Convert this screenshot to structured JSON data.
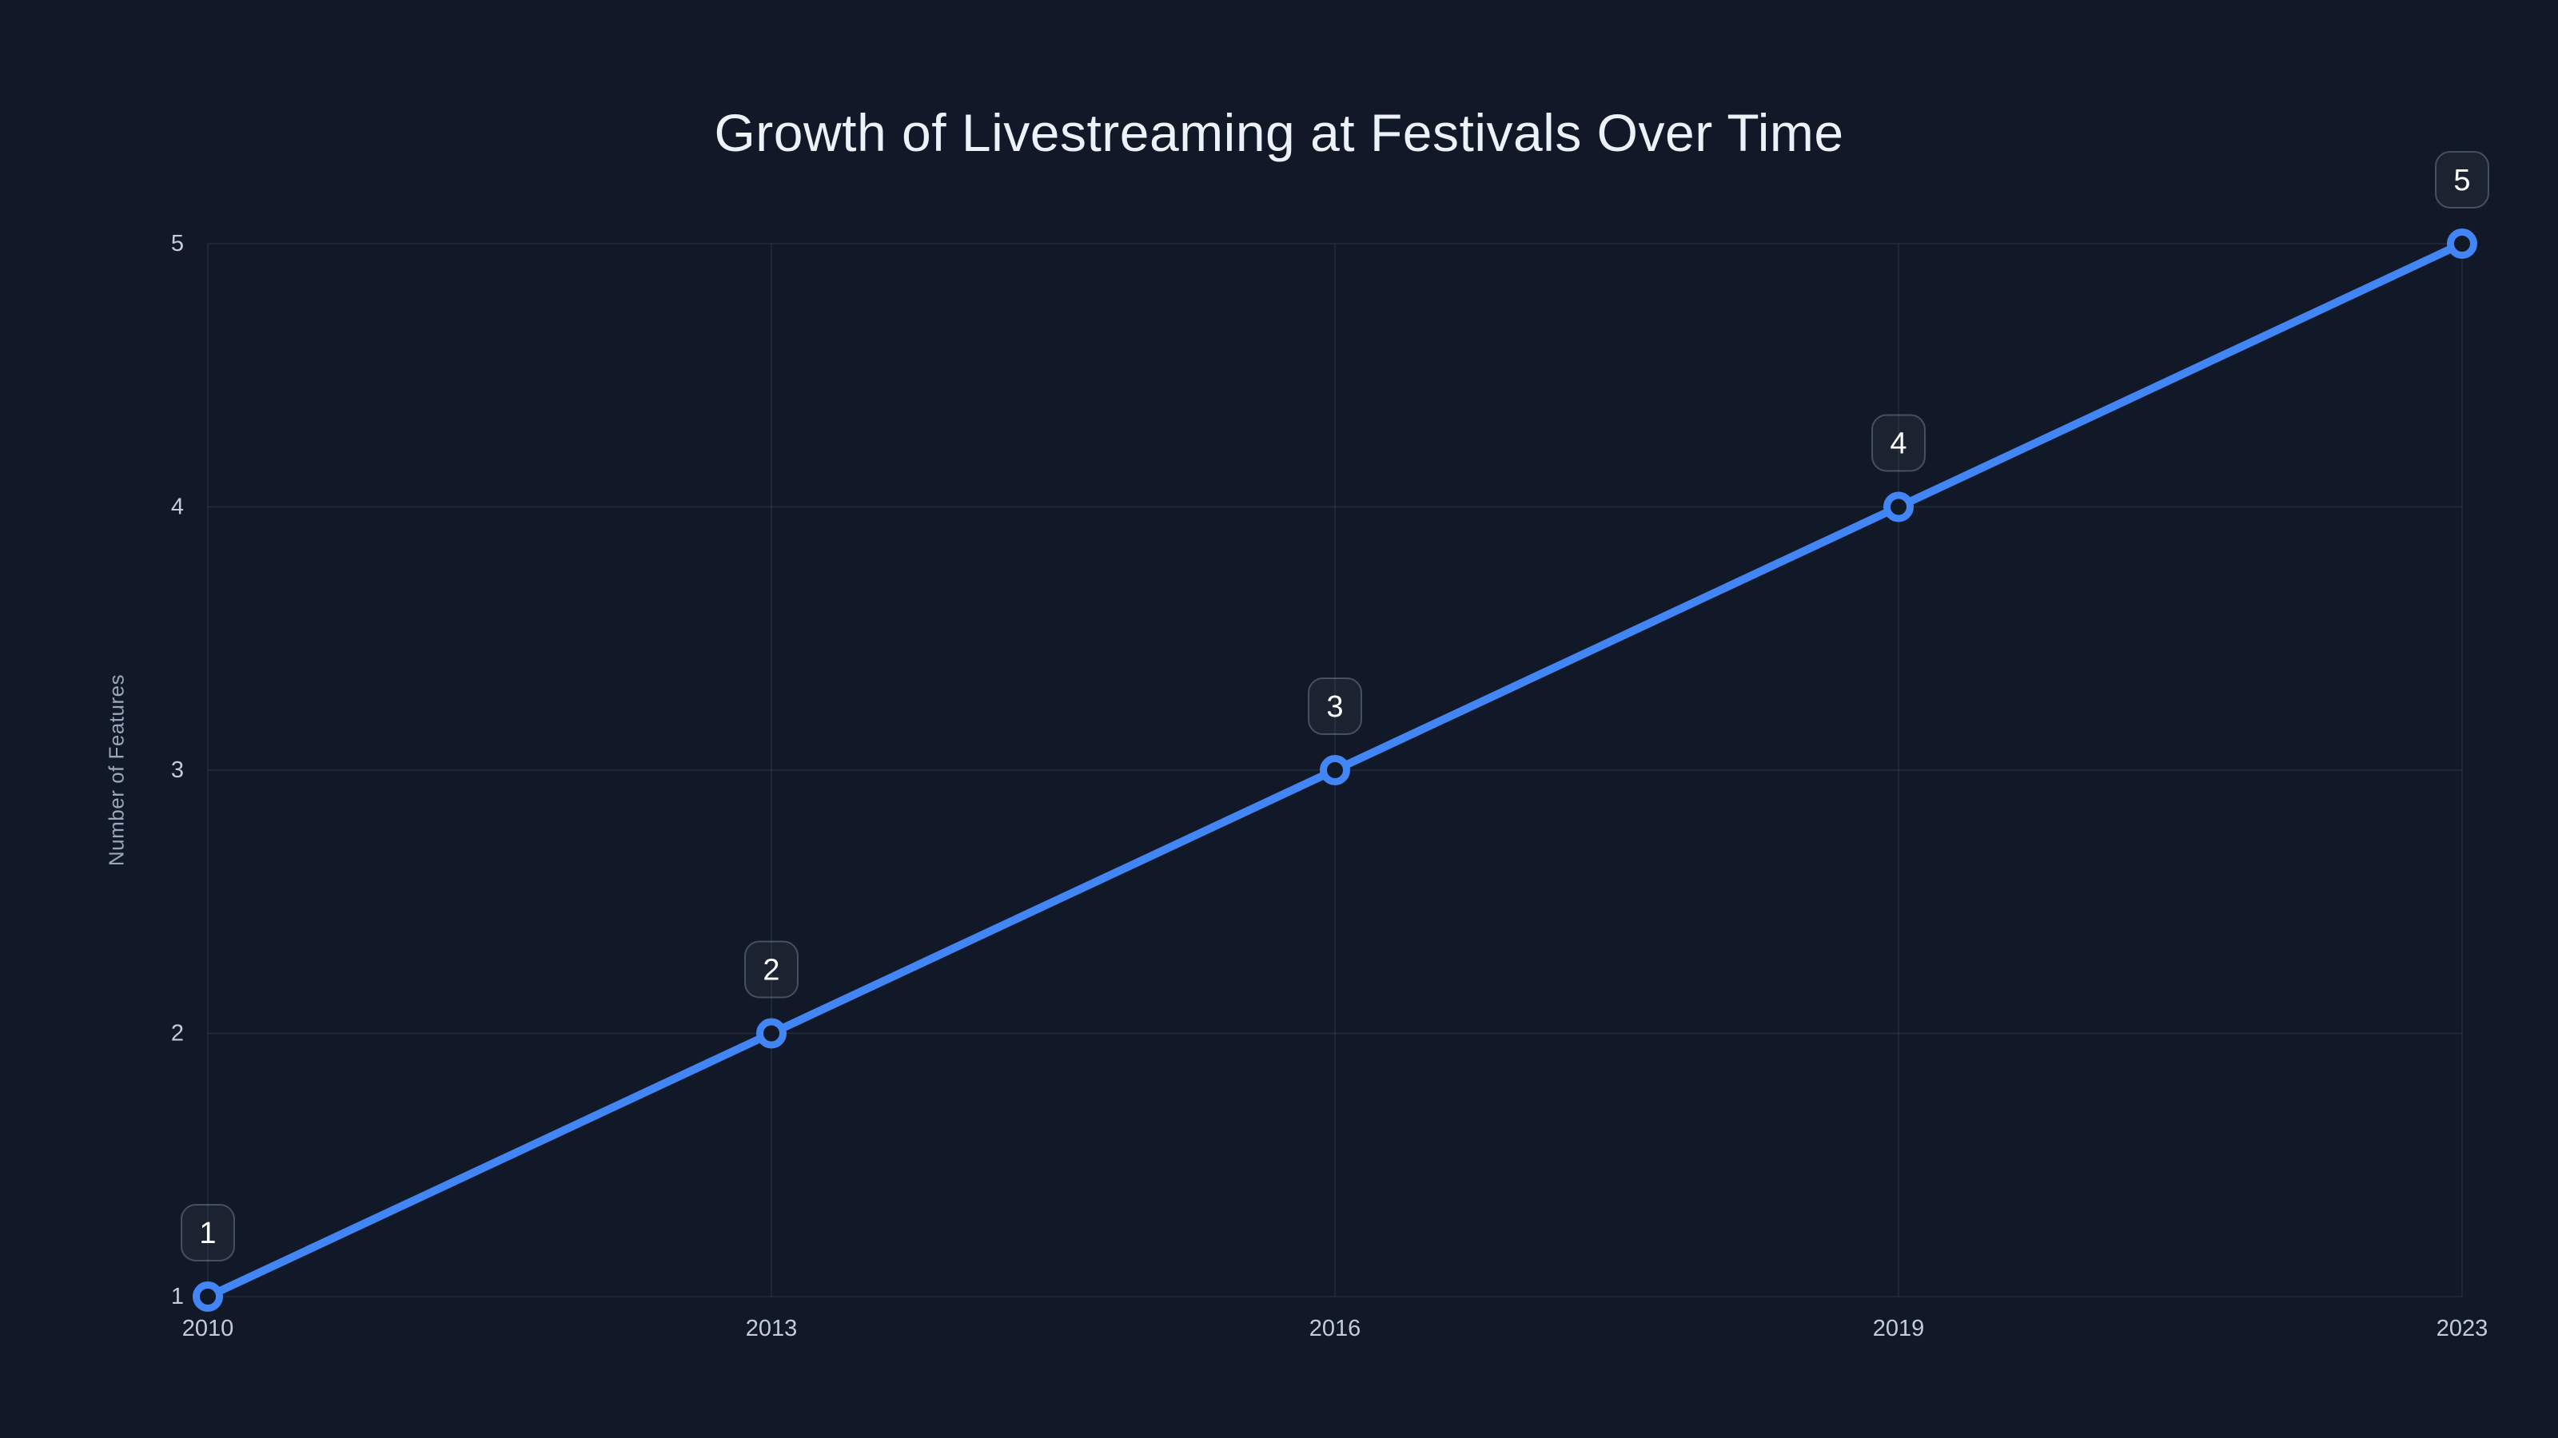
{
  "chart_data": {
    "type": "line",
    "title": "Growth of Livestreaming at Festivals Over Time",
    "xlabel": "",
    "ylabel": "Number of Features",
    "categories": [
      "2010",
      "2013",
      "2016",
      "2019",
      "2023"
    ],
    "values": [
      1,
      2,
      3,
      4,
      5
    ],
    "point_labels": [
      "1",
      "2",
      "3",
      "4",
      "5"
    ],
    "yticks": [
      1,
      2,
      3,
      4,
      5
    ],
    "ylim": [
      1,
      5
    ],
    "grid": true,
    "legend": false,
    "colors": {
      "background": "#111827",
      "line": "#4285f5",
      "marker_fill": "#111827",
      "grid": "rgba(148,163,184,0.15)",
      "tick": "#c2ccdb",
      "axis_title": "#9aa6ba",
      "title": "#edf1f8",
      "label_text": "#ffffff",
      "label_box_fill": "rgba(148,163,184,0.08)",
      "label_box_border": "rgba(148,163,184,0.38)"
    }
  }
}
